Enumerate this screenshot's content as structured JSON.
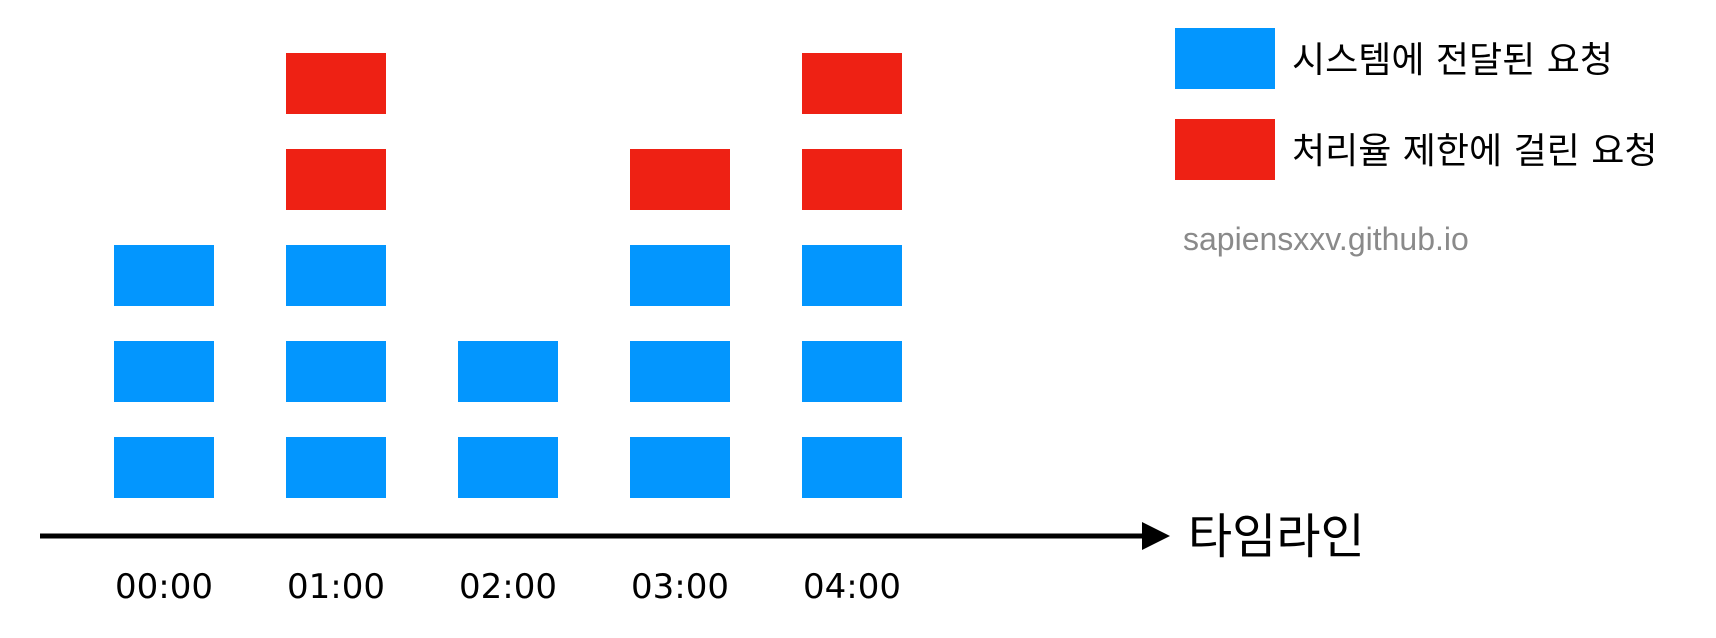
{
  "chart_data": {
    "type": "bar",
    "categories": [
      "00:00",
      "01:00",
      "02:00",
      "03:00",
      "04:00"
    ],
    "series": [
      {
        "name": "시스템에 전달된 요청",
        "values": [
          3,
          3,
          2,
          3,
          3
        ],
        "color": "#0396fe"
      },
      {
        "name": "처리율 제한에 걸린 요청",
        "values": [
          0,
          2,
          0,
          1,
          2
        ],
        "color": "#ee2114"
      }
    ],
    "xlabel": "타임라인",
    "legend_position": "top-right",
    "grid": false
  },
  "watermark": {
    "text": "sapiensxxv.github.io",
    "color": "#8a8a8a"
  }
}
